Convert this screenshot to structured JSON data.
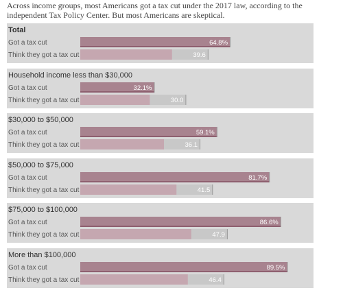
{
  "intro_text": "Across income groups, most Americans got a tax cut under the 2017 law, according to the independent Tax Policy Center. But most Americans are skeptical.",
  "colors": {
    "panel_bg": "#d9d9d9",
    "actual_bar": "#a8838f",
    "actual_underline": "#8e5f6f",
    "perceived_bar": "#c5a7b0",
    "ghost_bar": "#c8c8c8",
    "value_text": "#ffffff"
  },
  "chart_data": {
    "type": "bar",
    "orientation": "horizontal",
    "xlim": [
      0,
      100
    ],
    "value_suffix_format": "percent",
    "groups": [
      {
        "label": "Total",
        "bars": [
          {
            "label": "Got a tax cut",
            "value": 64.8,
            "display": "64.8%"
          },
          {
            "label": "Think they got a tax cut",
            "value": 39.6,
            "display": "39.6"
          }
        ]
      },
      {
        "label": "Household income less than $30,000",
        "bars": [
          {
            "label": "Got a tax cut",
            "value": 32.1,
            "display": "32.1%"
          },
          {
            "label": "Think they got a tax cut",
            "value": 30.0,
            "display": "30.0"
          }
        ]
      },
      {
        "label": "$30,000 to $50,000",
        "bars": [
          {
            "label": "Got a tax cut",
            "value": 59.1,
            "display": "59.1%"
          },
          {
            "label": "Think they got a tax cut",
            "value": 36.1,
            "display": "36.1"
          }
        ]
      },
      {
        "label": "$50,000 to $75,000",
        "bars": [
          {
            "label": "Got a tax cut",
            "value": 81.7,
            "display": "81.7%"
          },
          {
            "label": "Think they got a tax cut",
            "value": 41.5,
            "display": "41.5"
          }
        ]
      },
      {
        "label": "$75,000 to $100,000",
        "bars": [
          {
            "label": "Got a tax cut",
            "value": 86.6,
            "display": "86.6%"
          },
          {
            "label": "Think they got a tax cut",
            "value": 47.9,
            "display": "47.9"
          }
        ]
      },
      {
        "label": "More than $100,000",
        "bars": [
          {
            "label": "Got a tax cut",
            "value": 89.5,
            "display": "89.5%"
          },
          {
            "label": "Think they got a tax cut",
            "value": 46.4,
            "display": "46.4"
          }
        ]
      }
    ]
  }
}
